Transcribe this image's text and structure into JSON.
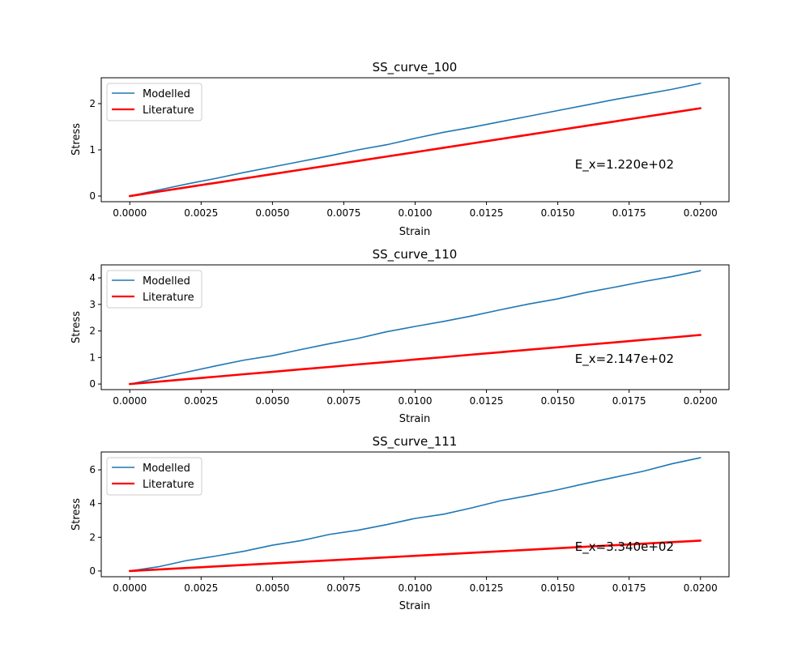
{
  "colors": {
    "modelled": "#1f77b4",
    "literature": "#ff0000"
  },
  "chart_data": [
    {
      "type": "line",
      "title": "SS_curve_100",
      "xlabel": "Strain",
      "ylabel": "Stress",
      "xlim": [
        -0.001,
        0.021
      ],
      "ylim": [
        -0.122,
        2.56
      ],
      "xticks": [
        0.0,
        0.0025,
        0.005,
        0.0075,
        0.01,
        0.0125,
        0.015,
        0.0175,
        0.02
      ],
      "xtick_labels": [
        "0.0000",
        "0.0025",
        "0.0050",
        "0.0075",
        "0.0100",
        "0.0125",
        "0.0150",
        "0.0175",
        "0.0200"
      ],
      "yticks": [
        0,
        1,
        2
      ],
      "ytick_labels": [
        "0",
        "1",
        "2"
      ],
      "legend": {
        "position": "upper-left",
        "entries": [
          "Modelled",
          "Literature"
        ]
      },
      "annotation": {
        "text": "E_x=1.220e+02",
        "x": 0.0156,
        "y": 0.6
      },
      "grid": false,
      "x": [
        0.0,
        0.001,
        0.002,
        0.003,
        0.004,
        0.005,
        0.006,
        0.007,
        0.008,
        0.009,
        0.01,
        0.011,
        0.012,
        0.013,
        0.014,
        0.015,
        0.016,
        0.017,
        0.018,
        0.019,
        0.02
      ],
      "series": [
        {
          "name": "Modelled",
          "color": "#1f77b4",
          "values": [
            0.0,
            0.13,
            0.26,
            0.38,
            0.51,
            0.63,
            0.75,
            0.87,
            1.0,
            1.11,
            1.25,
            1.38,
            1.49,
            1.61,
            1.73,
            1.85,
            1.97,
            2.09,
            2.2,
            2.31,
            2.44
          ]
        },
        {
          "name": "Literature",
          "color": "#ff0000",
          "values": [
            0.0,
            0.095,
            0.19,
            0.285,
            0.38,
            0.475,
            0.57,
            0.665,
            0.76,
            0.855,
            0.95,
            1.045,
            1.14,
            1.235,
            1.33,
            1.425,
            1.52,
            1.615,
            1.71,
            1.805,
            1.9
          ]
        }
      ]
    },
    {
      "type": "line",
      "title": "SS_curve_110",
      "xlabel": "Strain",
      "ylabel": "Stress",
      "xlim": [
        -0.001,
        0.021
      ],
      "ylim": [
        -0.21,
        4.49
      ],
      "xticks": [
        0.0,
        0.0025,
        0.005,
        0.0075,
        0.01,
        0.0125,
        0.015,
        0.0175,
        0.02
      ],
      "xtick_labels": [
        "0.0000",
        "0.0025",
        "0.0050",
        "0.0075",
        "0.0100",
        "0.0125",
        "0.0150",
        "0.0175",
        "0.0200"
      ],
      "yticks": [
        0,
        1,
        2,
        3,
        4
      ],
      "ytick_labels": [
        "0",
        "1",
        "2",
        "3",
        "4"
      ],
      "legend": {
        "position": "upper-left",
        "entries": [
          "Modelled",
          "Literature"
        ]
      },
      "annotation": {
        "text": "E_x=2.147e+02",
        "x": 0.0156,
        "y": 0.8
      },
      "grid": false,
      "x": [
        0.0,
        0.001,
        0.002,
        0.003,
        0.004,
        0.005,
        0.006,
        0.007,
        0.008,
        0.009,
        0.01,
        0.011,
        0.012,
        0.013,
        0.014,
        0.015,
        0.016,
        0.017,
        0.018,
        0.019,
        0.02
      ],
      "series": [
        {
          "name": "Modelled",
          "color": "#1f77b4",
          "values": [
            0.0,
            0.22,
            0.45,
            0.68,
            0.9,
            1.07,
            1.3,
            1.52,
            1.72,
            1.97,
            2.17,
            2.36,
            2.57,
            2.8,
            3.02,
            3.21,
            3.45,
            3.65,
            3.86,
            4.05,
            4.27
          ]
        },
        {
          "name": "Literature",
          "color": "#ff0000",
          "values": [
            0.0,
            0.09,
            0.185,
            0.275,
            0.37,
            0.46,
            0.555,
            0.645,
            0.74,
            0.83,
            0.925,
            1.015,
            1.11,
            1.2,
            1.295,
            1.385,
            1.48,
            1.57,
            1.665,
            1.755,
            1.85
          ]
        }
      ]
    },
    {
      "type": "line",
      "title": "SS_curve_111",
      "xlabel": "Strain",
      "ylabel": "Stress",
      "xlim": [
        -0.001,
        0.021
      ],
      "ylim": [
        -0.34,
        7.06
      ],
      "xticks": [
        0.0,
        0.0025,
        0.005,
        0.0075,
        0.01,
        0.0125,
        0.015,
        0.0175,
        0.02
      ],
      "xtick_labels": [
        "0.0000",
        "0.0025",
        "0.0050",
        "0.0075",
        "0.0100",
        "0.0125",
        "0.0150",
        "0.0175",
        "0.0200"
      ],
      "yticks": [
        0,
        2,
        4,
        6
      ],
      "ytick_labels": [
        "0",
        "2",
        "4",
        "6"
      ],
      "legend": {
        "position": "upper-left",
        "entries": [
          "Modelled",
          "Literature"
        ]
      },
      "annotation": {
        "text": "E_x=3.340e+02",
        "x": 0.0156,
        "y": 1.2
      },
      "grid": false,
      "x": [
        0.0,
        0.001,
        0.002,
        0.003,
        0.004,
        0.005,
        0.006,
        0.007,
        0.008,
        0.009,
        0.01,
        0.011,
        0.012,
        0.013,
        0.014,
        0.015,
        0.016,
        0.017,
        0.018,
        0.019,
        0.02
      ],
      "series": [
        {
          "name": "Modelled",
          "color": "#1f77b4",
          "values": [
            0.0,
            0.25,
            0.62,
            0.88,
            1.17,
            1.53,
            1.8,
            2.17,
            2.42,
            2.75,
            3.12,
            3.37,
            3.75,
            4.17,
            4.48,
            4.82,
            5.2,
            5.56,
            5.92,
            6.36,
            6.72
          ]
        },
        {
          "name": "Literature",
          "color": "#ff0000",
          "values": [
            0.0,
            0.09,
            0.18,
            0.27,
            0.36,
            0.45,
            0.54,
            0.63,
            0.72,
            0.81,
            0.9,
            0.99,
            1.08,
            1.17,
            1.26,
            1.35,
            1.44,
            1.53,
            1.62,
            1.71,
            1.8
          ]
        }
      ]
    }
  ]
}
